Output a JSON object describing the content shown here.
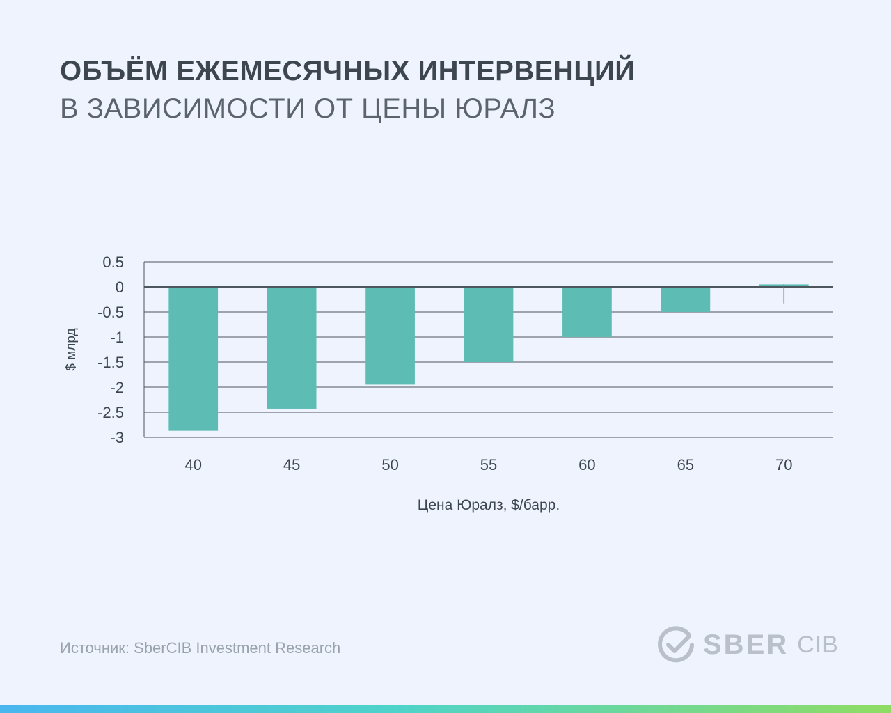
{
  "header": {
    "title": "ОБЪЁМ ЕЖЕМЕСЯЧНЫХ ИНТЕРВЕНЦИЙ",
    "subtitle": "В ЗАВИСИМОСТИ ОТ ЦЕНЫ ЮРАЛЗ"
  },
  "chart_data": {
    "type": "bar",
    "title": "ОБЪЁМ ЕЖЕМЕСЯЧНЫХ ИНТЕРВЕНЦИЙ В ЗАВИСИМОСТИ ОТ ЦЕНЫ ЮРАЛЗ",
    "categories": [
      "40",
      "45",
      "50",
      "55",
      "60",
      "65",
      "70"
    ],
    "values": [
      -2.87,
      -2.43,
      -1.95,
      -1.5,
      -1.0,
      -0.5,
      0.05
    ],
    "error_bars": [
      {
        "category": "70",
        "low": -0.33,
        "high": 0.05
      }
    ],
    "xlabel": "Цена Юралз, $/барр.",
    "ylabel": "$ млрд",
    "ylim": [
      -3,
      0.5
    ],
    "yticks": [
      0.5,
      0,
      -0.5,
      -1,
      -1.5,
      -2,
      -2.5,
      -3
    ],
    "ytick_labels": [
      "0.5",
      "0",
      "-0.5",
      "-1",
      "-1.5",
      "-2",
      "-2.5",
      "-3"
    ],
    "grid": true,
    "legend": "none",
    "colors": {
      "bar": "#5dbdb5",
      "grid": "#4d555d",
      "zero": "#4d555d"
    }
  },
  "footer": {
    "source": "Источник: SberCIB Investment Research",
    "logo_brand": "SBER",
    "logo_sub": "CIB"
  }
}
